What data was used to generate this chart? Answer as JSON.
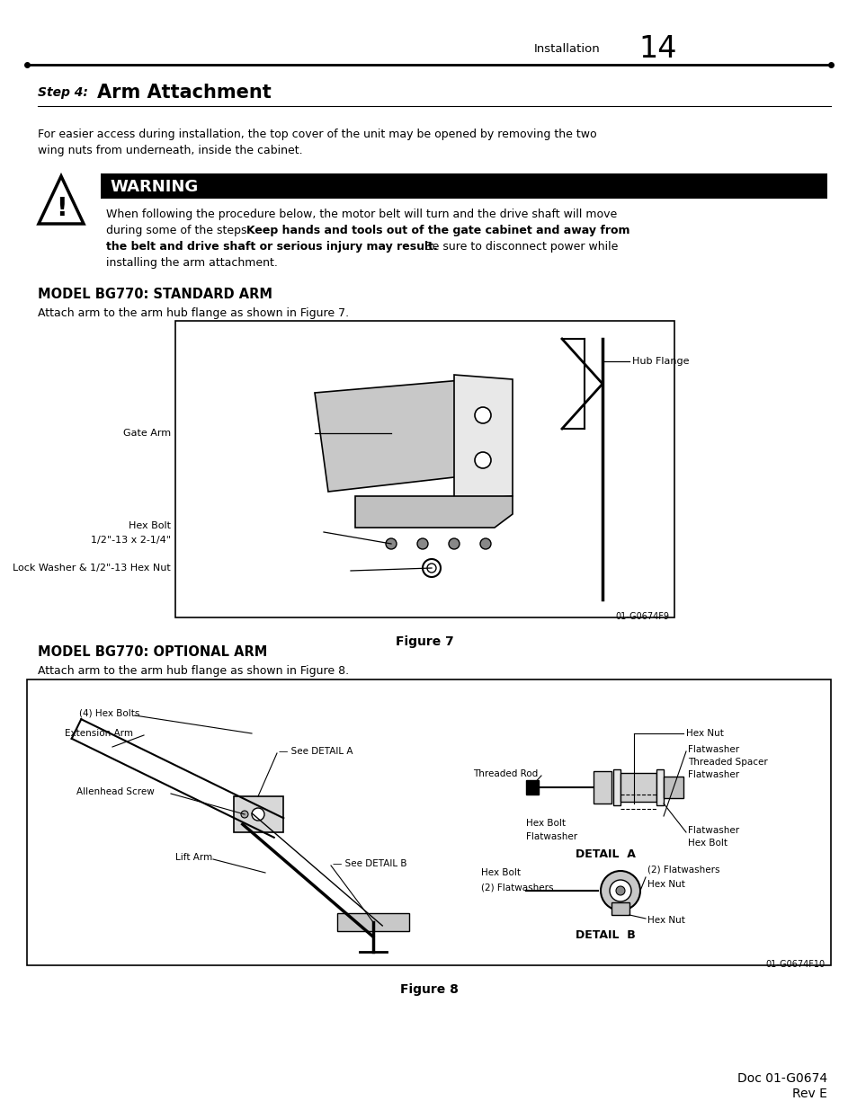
{
  "bg_color": "#ffffff",
  "page_width": 9.54,
  "page_height": 12.35,
  "header_text": "Installation",
  "header_number": "14",
  "step_label": "Step 4:",
  "step_title": "Arm Attachment",
  "intro_line1": "For easier access during installation, the top cover of the unit may be opened by removing the two",
  "intro_line2": "wing nuts from underneath, inside the cabinet.",
  "warning_title": "WARNING",
  "warn_line1": "When following the procedure below, the motor belt will turn and the drive shaft will move",
  "warn_line2a": "during some of the steps.  ",
  "warn_line2b": "Keep hands and tools out of the gate cabinet and away from",
  "warn_line3a": "the belt and drive shaft or serious injury may result.",
  "warn_line3b": "  Be sure to disconnect power while",
  "warn_line4": "installing the arm attachment.",
  "model1_title": "MODEL BG770: STANDARD ARM",
  "model1_sub": "Attach arm to the arm hub flange as shown in Figure 7.",
  "fig7_label_hub": "Hub Flange",
  "fig7_label_gate": "Gate Arm",
  "fig7_label_bolt1": "Hex Bolt",
  "fig7_label_bolt2": "1/2\"-13 x 2-1/4\"",
  "fig7_label_lock": "Lock Washer & 1/2\"-13 Hex Nut",
  "fig7_ref": "01-G0674F9",
  "figure7_caption": "Figure 7",
  "model2_title": "MODEL BG770: OPTIONAL ARM",
  "model2_sub": "Attach arm to the arm hub flange as shown in Figure 8.",
  "fig8_ref": "01-G0674F10",
  "figure8_caption": "Figure 8",
  "footer_doc": "Doc 01-G0674",
  "footer_rev": "Rev E"
}
